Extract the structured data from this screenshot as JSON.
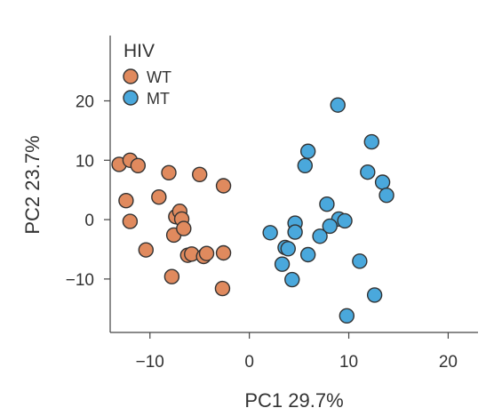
{
  "chart_data": {
    "type": "scatter",
    "xlabel": "PC1 29.7%",
    "ylabel": "PC2 23.7%",
    "xlim": [
      -14,
      23
    ],
    "ylim": [
      -19,
      31
    ],
    "xticks": [
      -10,
      0,
      10,
      20
    ],
    "yticks": [
      -10,
      0,
      10,
      20
    ],
    "xtick_labels": [
      "−10",
      "0",
      "10",
      "20"
    ],
    "ytick_labels": [
      "−10",
      "0",
      "10",
      "20"
    ],
    "grid": false,
    "legend": {
      "title": "HIV",
      "placement": "top-left"
    },
    "series": [
      {
        "name": "WT",
        "color": "#e08a5e",
        "points": [
          {
            "x": -13.1,
            "y": 9.3
          },
          {
            "x": -12.0,
            "y": 10.0
          },
          {
            "x": -11.2,
            "y": 9.1
          },
          {
            "x": -12.4,
            "y": 3.2
          },
          {
            "x": -12.0,
            "y": -0.3
          },
          {
            "x": -10.4,
            "y": -5.1
          },
          {
            "x": -9.1,
            "y": 3.8
          },
          {
            "x": -8.1,
            "y": 7.9
          },
          {
            "x": -7.8,
            "y": -9.6
          },
          {
            "x": -7.6,
            "y": -2.6
          },
          {
            "x": -7.4,
            "y": 0.5
          },
          {
            "x": -7.0,
            "y": 1.4
          },
          {
            "x": -6.8,
            "y": 0.1
          },
          {
            "x": -6.6,
            "y": -1.5
          },
          {
            "x": -6.2,
            "y": -6.0
          },
          {
            "x": -5.8,
            "y": -5.8
          },
          {
            "x": -5.0,
            "y": 7.6
          },
          {
            "x": -4.6,
            "y": -6.2
          },
          {
            "x": -4.3,
            "y": -5.7
          },
          {
            "x": -2.6,
            "y": 5.7
          },
          {
            "x": -2.6,
            "y": -5.6
          },
          {
            "x": -2.7,
            "y": -11.6
          }
        ]
      },
      {
        "name": "MT",
        "color": "#4aa8dc",
        "points": [
          {
            "x": 8.9,
            "y": 19.3
          },
          {
            "x": 12.3,
            "y": 13.1
          },
          {
            "x": 5.9,
            "y": 11.5
          },
          {
            "x": 5.6,
            "y": 9.1
          },
          {
            "x": 11.9,
            "y": 8.0
          },
          {
            "x": 13.4,
            "y": 6.3
          },
          {
            "x": 13.8,
            "y": 4.1
          },
          {
            "x": 7.8,
            "y": 2.6
          },
          {
            "x": 9.0,
            "y": 0.1
          },
          {
            "x": 9.6,
            "y": -0.2
          },
          {
            "x": 4.6,
            "y": -0.6
          },
          {
            "x": 8.1,
            "y": -1.1
          },
          {
            "x": 2.1,
            "y": -2.2
          },
          {
            "x": 4.6,
            "y": -2.1
          },
          {
            "x": 7.1,
            "y": -2.8
          },
          {
            "x": 3.6,
            "y": -4.7
          },
          {
            "x": 3.9,
            "y": -4.9
          },
          {
            "x": 5.9,
            "y": -5.9
          },
          {
            "x": 3.3,
            "y": -7.5
          },
          {
            "x": 11.1,
            "y": -7.0
          },
          {
            "x": 4.3,
            "y": -10.1
          },
          {
            "x": 12.6,
            "y": -12.7
          },
          {
            "x": 9.8,
            "y": -16.2
          }
        ]
      }
    ]
  }
}
